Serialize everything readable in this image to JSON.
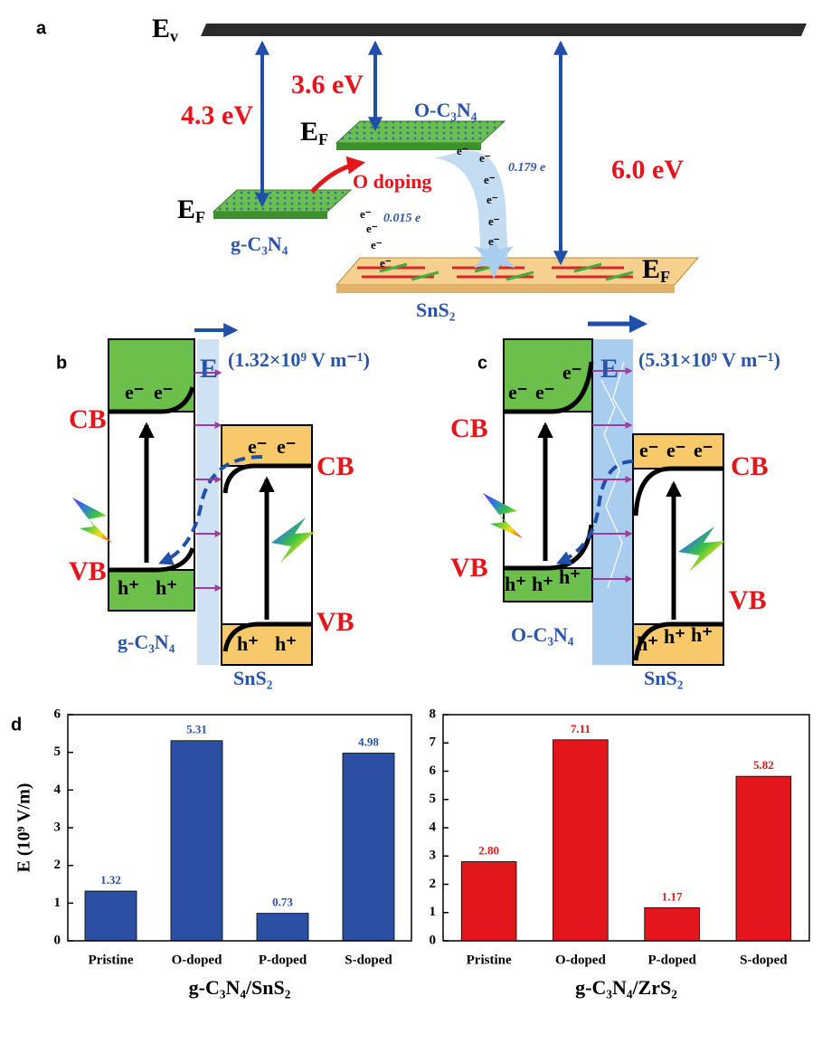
{
  "panel_labels": [
    "a",
    "b",
    "c",
    "d"
  ],
  "panel_a": {
    "vacuum_level": {
      "base": "E",
      "sub": "v"
    },
    "fermi_level": {
      "base": "E",
      "sub": "F"
    },
    "gaps": [
      "4.3 eV",
      "3.6 eV",
      "6.0 eV"
    ],
    "materials": [
      "g-C₃N₄",
      "O-C₃N₄",
      "SnS₂"
    ],
    "doping": "O doping",
    "transfers": [
      "0.015 e",
      "0.179 e"
    ],
    "electron": "e⁻"
  },
  "panel_b": {
    "field_symbol": "E",
    "field": "(1.32×10⁹ V m⁻¹)",
    "bands": [
      "CB",
      "VB"
    ],
    "materials": [
      "g-C₃N₄",
      "SnS₂"
    ],
    "electron": "e⁻",
    "hole": "h⁺"
  },
  "panel_c": {
    "field_symbol": "E",
    "field": "(5.31×10⁹ V m⁻¹)",
    "bands": [
      "CB",
      "VB"
    ],
    "materials": [
      "O-C₃N₄",
      "SnS₂"
    ],
    "electron": "e⁻",
    "hole": "h⁺"
  },
  "chart_data": [
    {
      "type": "bar",
      "y_label": "E (10⁹ V/m)",
      "x_label": "g-C₃N₄/SnS₂",
      "categories": [
        "Pristine",
        "O-doped",
        "P-doped",
        "S-doped"
      ],
      "values": [
        1.32,
        5.31,
        0.73,
        4.98
      ],
      "color": "#2b4fa2",
      "ylim": [
        0,
        6
      ],
      "yticks": [
        0,
        1,
        2,
        3,
        4,
        5,
        6
      ],
      "grid": false
    },
    {
      "type": "bar",
      "x_label": "g-C₃N₄/ZrS₂",
      "categories": [
        "Pristine",
        "O-doped",
        "P-doped",
        "S-doped"
      ],
      "values": [
        2.8,
        7.11,
        1.17,
        5.82
      ],
      "value_labels": [
        "2.80",
        "7.11",
        "1.17",
        "5.82"
      ],
      "color": "#e3171b",
      "ylim": [
        0,
        8
      ],
      "yticks": [
        0,
        1,
        2,
        3,
        4,
        5,
        6,
        7,
        8
      ],
      "grid": false
    }
  ]
}
